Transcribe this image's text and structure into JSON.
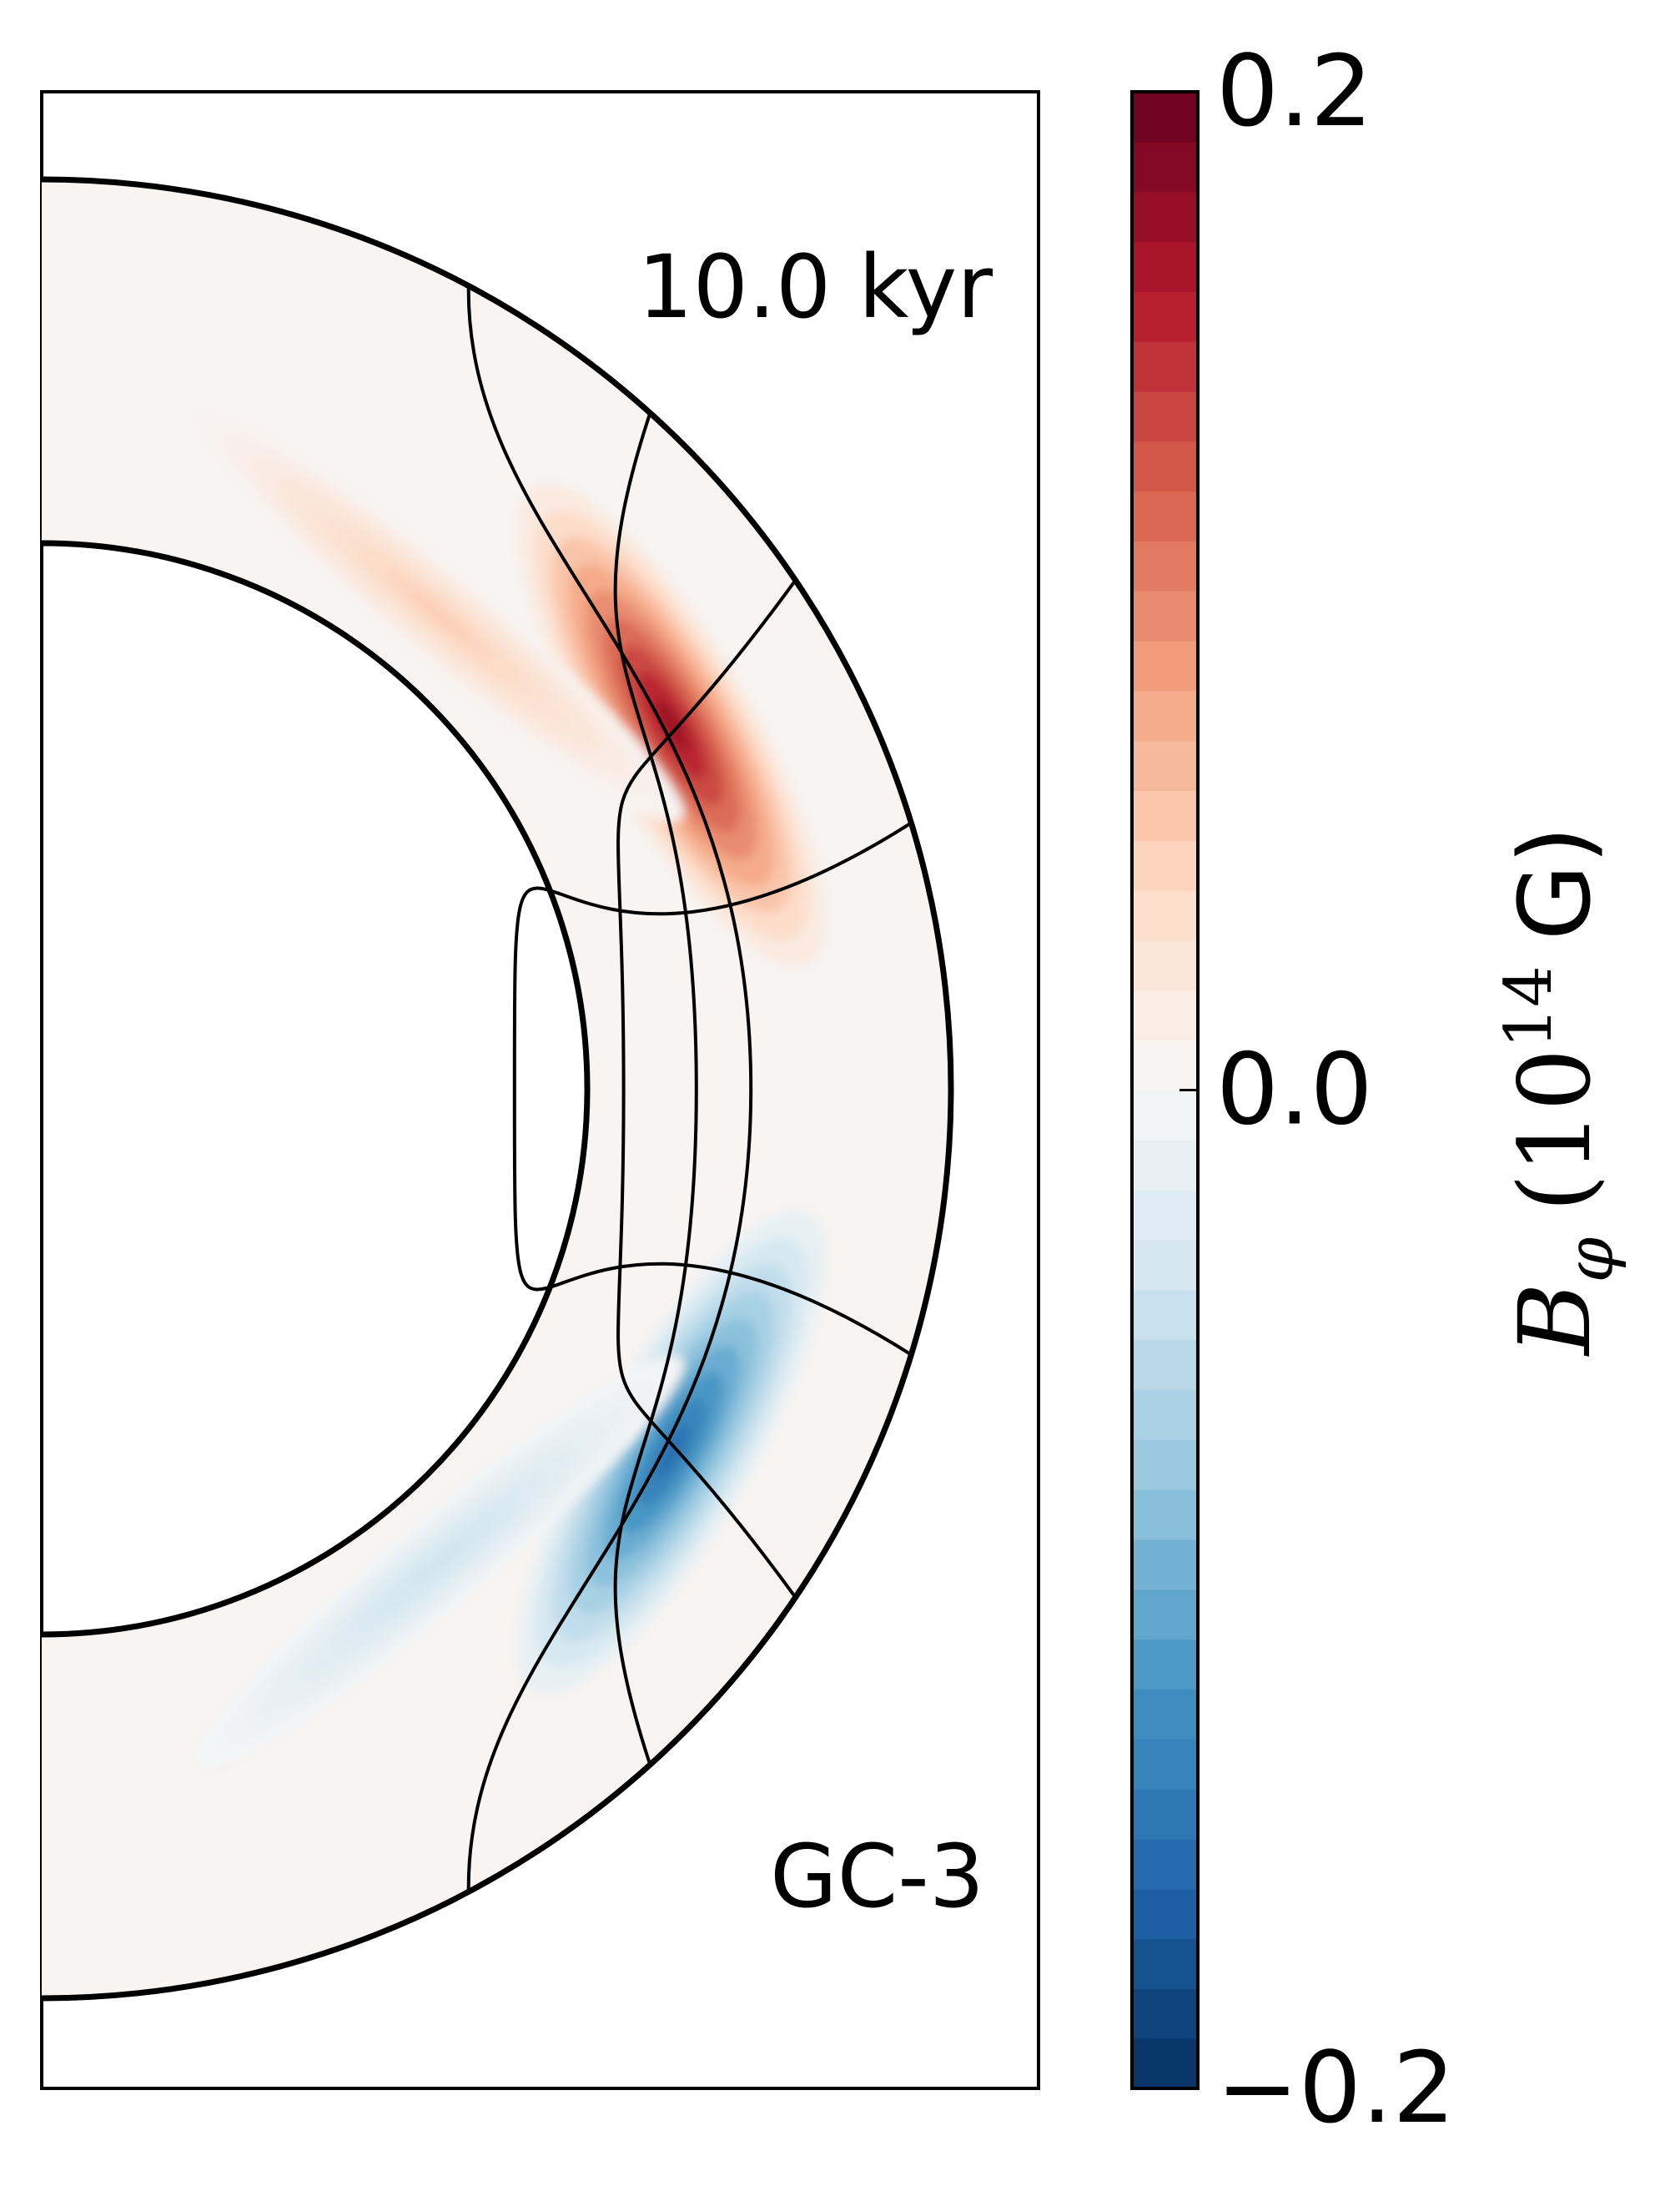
{
  "chart_data": {
    "type": "heatmap",
    "subtype": "meridional-cross-section",
    "variable": "B_phi",
    "annotations": {
      "time": "10.0  kyr",
      "model": "GC-3"
    },
    "colorbar": {
      "label_symbol": "B",
      "label_subscript": "φ",
      "label_units_open": "(10",
      "label_units_exp": "14",
      "label_units_close": "G)",
      "vmin": -0.2,
      "vmax": 0.2,
      "ticks": [
        {
          "value": 0.2,
          "label": "0.2"
        },
        {
          "value": 0.0,
          "label": "0.0"
        },
        {
          "value": -0.2,
          "label": "−0.2"
        }
      ],
      "n_levels": 40,
      "colormap": "RdBu_r",
      "colors": [
        "#053061",
        "#2166ac",
        "#4393c3",
        "#92c5de",
        "#d1e5f0",
        "#f7f7f7",
        "#fddbc7",
        "#f4a582",
        "#d6604d",
        "#b2182b",
        "#67001f"
      ]
    },
    "domain": {
      "inner_radius": 0.6,
      "outer_radius": 1.0,
      "theta_range_deg": [
        0,
        180
      ]
    },
    "field_features": [
      {
        "name": "positive-lobe",
        "sign": "positive",
        "theta_deg": 60,
        "radius": 0.8,
        "peak": 0.17
      },
      {
        "name": "negative-lobe",
        "sign": "negative",
        "theta_deg": 120,
        "radius": 0.8,
        "peak": -0.15
      },
      {
        "name": "weak-band-1",
        "sign": "positive",
        "theta_deg": 40,
        "radius": 0.68,
        "peak": 0.05
      },
      {
        "name": "weak-band-2",
        "sign": "negative",
        "theta_deg": 140,
        "radius": 0.68,
        "peak": -0.04
      }
    ],
    "field_lines": 4
  }
}
